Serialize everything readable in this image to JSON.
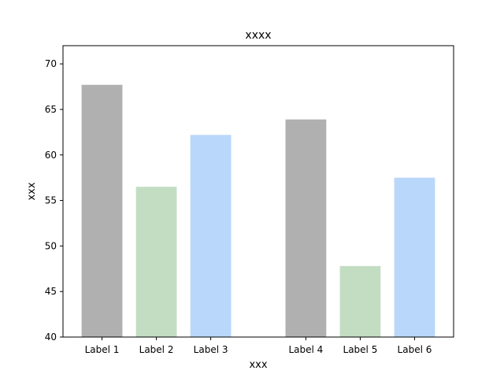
{
  "chart_data": {
    "type": "bar",
    "title": "xxxx",
    "xlabel": "xxx",
    "ylabel": "xxx",
    "ylim": [
      40,
      72
    ],
    "yticks": [
      40,
      45,
      50,
      55,
      60,
      65,
      70
    ],
    "grid": false,
    "categories": [
      "Label 1",
      "Label 2",
      "Label 3",
      "Label 4",
      "Label 5",
      "Label 6"
    ],
    "x": [
      0,
      1,
      2,
      3.75,
      4.75,
      5.75
    ],
    "values": [
      67.7,
      56.5,
      62.2,
      63.9,
      47.8,
      57.5
    ],
    "colors": [
      "#b0b0b0",
      "#c3ddc2",
      "#b9d7fb",
      "#b0b0b0",
      "#c3ddc2",
      "#b9d7fb"
    ]
  }
}
